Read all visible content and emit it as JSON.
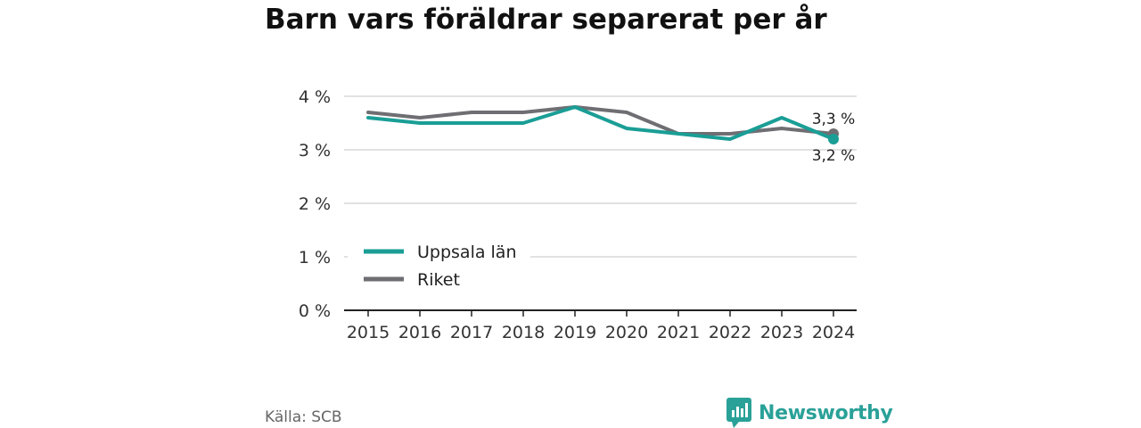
{
  "title": "Barn vars föräldrar separerat per år",
  "source": "Källa: SCB",
  "brand": {
    "name": "Newsworthy",
    "icon": "newsworthy-logo-icon"
  },
  "colors": {
    "uppsala": "#1a9e96",
    "riket": "#6e6e73",
    "grid": "#d9d9d9",
    "axis": "#222222"
  },
  "chart_data": {
    "type": "line",
    "title": "Barn vars föräldrar separerat per år",
    "x": [
      2015,
      2016,
      2017,
      2018,
      2019,
      2020,
      2021,
      2022,
      2023,
      2024
    ],
    "x_tick_labels": [
      "2015",
      "2016",
      "2017",
      "2018",
      "2019",
      "2020",
      "2021",
      "2022",
      "2023",
      "2024"
    ],
    "ylim": [
      0,
      4
    ],
    "y_ticks": [
      0,
      1,
      2,
      3,
      4
    ],
    "y_tick_labels": [
      "0 %",
      "1 %",
      "2 %",
      "3 %",
      "4 %"
    ],
    "grid": true,
    "legend_position": "lower-left",
    "series": [
      {
        "name": "Uppsala län",
        "values": [
          3.6,
          3.5,
          3.5,
          3.5,
          3.8,
          3.4,
          3.3,
          3.2,
          3.6,
          3.2
        ],
        "end_label": "3,2 %"
      },
      {
        "name": "Riket",
        "values": [
          3.7,
          3.6,
          3.7,
          3.7,
          3.8,
          3.7,
          3.3,
          3.3,
          3.4,
          3.3
        ],
        "end_label": "3,3 %"
      }
    ]
  }
}
